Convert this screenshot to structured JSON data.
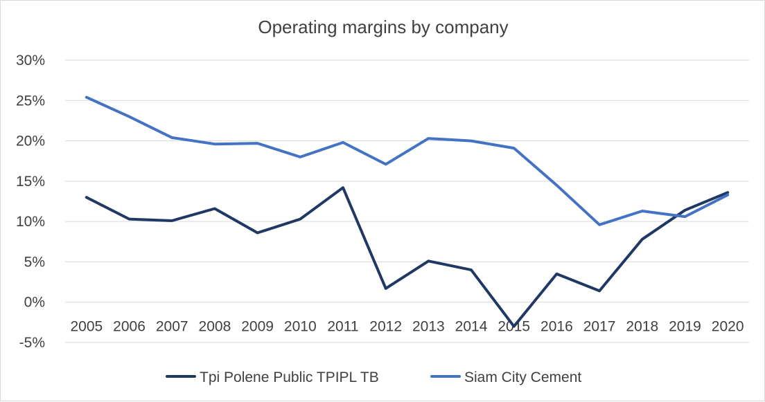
{
  "chart_data": {
    "type": "line",
    "title": "Operating margins by company",
    "xlabel": "",
    "ylabel": "",
    "categories": [
      "2005",
      "2006",
      "2007",
      "2008",
      "2009",
      "2010",
      "2011",
      "2012",
      "2013",
      "2014",
      "2015",
      "2016",
      "2017",
      "2018",
      "2019",
      "2020"
    ],
    "ylim": [
      -5,
      30
    ],
    "yticks": [
      -5,
      0,
      5,
      10,
      15,
      20,
      25,
      30
    ],
    "ytick_labels": [
      "-5%",
      "0%",
      "5%",
      "10%",
      "15%",
      "20%",
      "25%",
      "30%"
    ],
    "grid": true,
    "legend_position": "bottom",
    "series": [
      {
        "name": "Tpi Polene Public TPIPL TB",
        "color": "#203864",
        "values": [
          13.0,
          10.3,
          10.1,
          11.6,
          8.6,
          10.3,
          14.2,
          1.7,
          5.1,
          4.0,
          -3.0,
          3.5,
          1.4,
          7.8,
          11.4,
          13.6
        ]
      },
      {
        "name": "Siam City Cement",
        "color": "#4472c4",
        "values": [
          25.4,
          23.0,
          20.4,
          19.6,
          19.7,
          18.0,
          19.8,
          17.1,
          20.3,
          20.0,
          19.1,
          14.5,
          9.6,
          11.3,
          10.6,
          13.3
        ]
      }
    ]
  }
}
